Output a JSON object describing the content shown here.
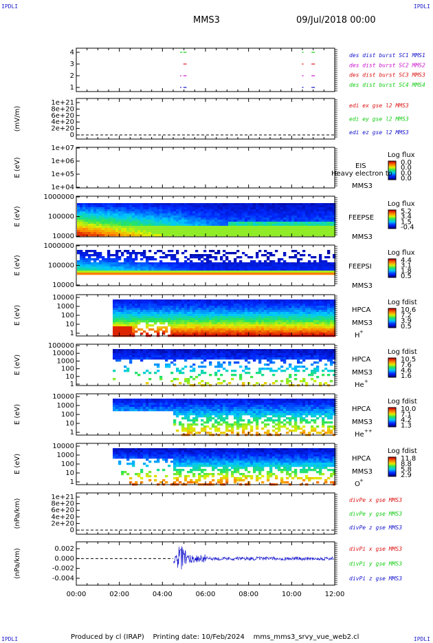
{
  "corners": {
    "tl": "IPDLI",
    "tr": "IPDLI",
    "bl": "IPDLI",
    "br": "IPDLI"
  },
  "header": {
    "spacecraft": "MMS3",
    "date": "09/Jul/2018 00:00"
  },
  "footer": {
    "text": "Produced by cl (IRAP)    Printing date: 10/Feb/2024    mms_mms3_srvy_vue_web2.cl"
  },
  "colors": {
    "red": "#dd1111",
    "green": "#11cc11",
    "blue": "#1111cc",
    "magenta": "#cc11cc"
  },
  "chart_data": [
    {
      "id": "burst",
      "type": "scatter",
      "y_ticks": [
        "4",
        "3",
        "2",
        "1"
      ],
      "x": [
        0,
        12
      ],
      "legend": [
        {
          "text": "des dist burst SC1 MMS1",
          "color": "#1111cc"
        },
        {
          "text": "des dist burst SC2 MMS2",
          "color": "#cc11cc"
        },
        {
          "text": "des dist burst SC3 MMS3",
          "color": "#dd1111"
        },
        {
          "text": "des dist burst SC4 MMS4",
          "color": "#11cc11"
        }
      ],
      "intervals": [
        {
          "sc": 4,
          "start": 4.82,
          "end": 4.92
        },
        {
          "sc": 4,
          "start": 4.97,
          "end": 5.12
        },
        {
          "sc": 4,
          "start": 10.48,
          "end": 10.55
        },
        {
          "sc": 4,
          "start": 10.92,
          "end": 11.08
        },
        {
          "sc": 3,
          "start": 4.97,
          "end": 5.12
        },
        {
          "sc": 3,
          "start": 10.48,
          "end": 10.55
        },
        {
          "sc": 3,
          "start": 10.92,
          "end": 11.08
        },
        {
          "sc": 2,
          "start": 4.82,
          "end": 4.88
        },
        {
          "sc": 2,
          "start": 4.97,
          "end": 5.12
        },
        {
          "sc": 2,
          "start": 10.48,
          "end": 10.55
        },
        {
          "sc": 2,
          "start": 10.92,
          "end": 11.08
        },
        {
          "sc": 1,
          "start": 4.82,
          "end": 4.88
        },
        {
          "sc": 1,
          "start": 4.97,
          "end": 5.12
        },
        {
          "sc": 1,
          "start": 10.48,
          "end": 10.55
        },
        {
          "sc": 1,
          "start": 10.92,
          "end": 11.08
        }
      ]
    },
    {
      "id": "edi",
      "type": "line",
      "ylabel": "(mV/m)",
      "y_ticks": [
        "1e+21",
        "8e+20",
        "6e+20",
        "4e+20",
        "2e+20",
        "0"
      ],
      "legend": [
        {
          "text": "edi ex gse l2 MMS3",
          "color": "#dd1111"
        },
        {
          "text": "edi ey gse l2 MMS3",
          "color": "#11cc11"
        },
        {
          "text": "edi ez gse l2 MMS3",
          "color": "#1111cc"
        }
      ]
    },
    {
      "id": "eis",
      "type": "heatmap",
      "ylabel": "E (eV)",
      "y_ticks": [
        "1e+07",
        "1e+06",
        "1e+05",
        "1e+04"
      ],
      "side": [
        "EIS",
        "Heavy electron to",
        "MMS3"
      ],
      "cbar_title": "Log flux",
      "cbar_ticks": [
        "0.0",
        "0.0",
        "0.0",
        "0.0"
      ]
    },
    {
      "id": "feepse",
      "type": "heatmap",
      "ylabel": "E (eV)",
      "y_ticks": [
        "1000000",
        "100000",
        "10000"
      ],
      "side": [
        "FEEPSE",
        "MMS3"
      ],
      "cbar_title": "Log flux",
      "cbar_ticks": [
        "5.2",
        "3.4",
        "1.5",
        "-0.4"
      ]
    },
    {
      "id": "feepsi",
      "type": "heatmap",
      "ylabel": "E (eV)",
      "y_ticks": [
        "1000000",
        "100000",
        "10000"
      ],
      "side": [
        "FEEPSI",
        "MMS3"
      ],
      "cbar_title": "Log flux",
      "cbar_ticks": [
        "4.4",
        "3.1",
        "1.8",
        "0.5"
      ]
    },
    {
      "id": "hpca_h",
      "type": "heatmap",
      "ylabel": "E (eV)",
      "y_ticks": [
        "10000",
        "1000",
        "100",
        "10",
        "1"
      ],
      "side": [
        "HPCA",
        "MMS3"
      ],
      "species": "H",
      "charge": "+",
      "cbar_title": "Log fdist",
      "cbar_ticks": [
        "10.6",
        "7.2",
        "3.9",
        "0.5"
      ]
    },
    {
      "id": "hpca_he1",
      "type": "heatmap",
      "ylabel": "E (eV)",
      "y_ticks": [
        "100000",
        "10000",
        "1000",
        "100",
        "10",
        "1"
      ],
      "side": [
        "HPCA",
        "MMS3"
      ],
      "species": "He",
      "charge": "+",
      "cbar_title": "Log fdist",
      "cbar_ticks": [
        "10.5",
        "7.6",
        "4.6",
        "1.6"
      ]
    },
    {
      "id": "hpca_he2",
      "type": "heatmap",
      "ylabel": "E (eV)",
      "y_ticks": [
        "10000",
        "1000",
        "100",
        "10",
        "1"
      ],
      "side": [
        "HPCA",
        "MMS3"
      ],
      "species": "He",
      "charge": "++",
      "cbar_title": "Log fdist",
      "cbar_ticks": [
        "10.0",
        "7.1",
        "4.2",
        "1.3"
      ]
    },
    {
      "id": "hpca_o",
      "type": "heatmap",
      "ylabel": "E (eV)",
      "y_ticks": [
        "10000",
        "1000",
        "100",
        "10",
        "1"
      ],
      "side": [
        "HPCA",
        "MMS3"
      ],
      "species": "O",
      "charge": "+",
      "cbar_title": "Log fdist",
      "cbar_ticks": [
        "11.8",
        "8.8",
        "5.8",
        "2.9"
      ]
    },
    {
      "id": "divpe",
      "type": "line",
      "ylabel": "(nPa/km)",
      "y_ticks": [
        "1e+21",
        "8e+20",
        "6e+20",
        "4e+20",
        "2e+20",
        "0"
      ],
      "legend": [
        {
          "text": "divPe x gse MMS3",
          "color": "#dd1111"
        },
        {
          "text": "divPe y gse MMS3",
          "color": "#11cc11"
        },
        {
          "text": "divPe z gse MMS3",
          "color": "#1111cc"
        }
      ]
    },
    {
      "id": "divpi",
      "type": "line",
      "ylabel": "(nPa/km)",
      "y_ticks": [
        "0.002",
        "0.000",
        "-0.002",
        "-0.004"
      ],
      "ylim": [
        -0.005,
        0.003
      ],
      "legend": [
        {
          "text": "divPi x gse MMS3",
          "color": "#dd1111"
        },
        {
          "text": "divPi y gse MMS3",
          "color": "#11cc11"
        },
        {
          "text": "divPi z gse MMS3",
          "color": "#1111cc"
        }
      ],
      "data_start_hour": 4.5
    }
  ],
  "x_axis": {
    "ticks": [
      "00:00",
      "02:00",
      "04:00",
      "06:00",
      "08:00",
      "10:00",
      "12:00"
    ],
    "range": [
      0,
      12
    ]
  }
}
